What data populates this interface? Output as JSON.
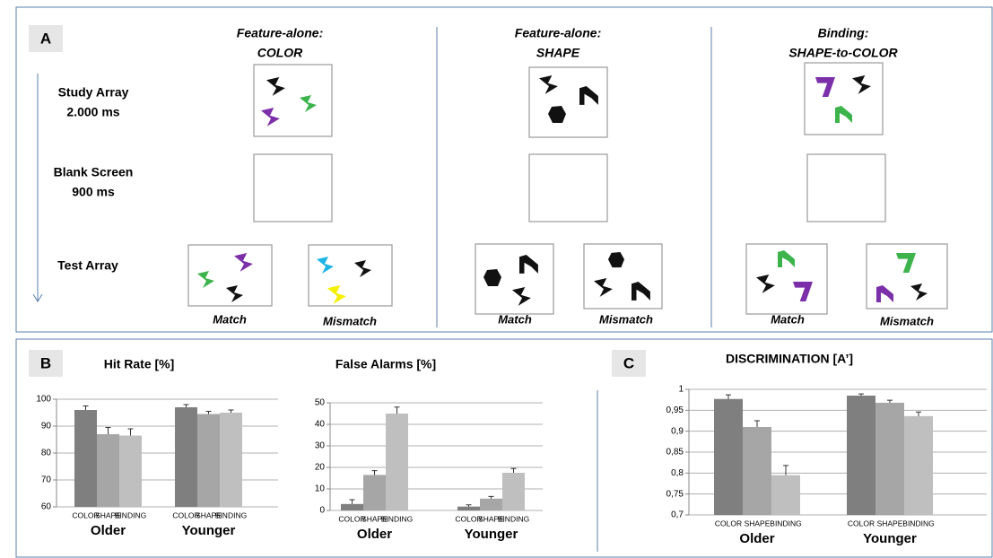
{
  "panel_a": {
    "label": "A",
    "columns": [
      {
        "line1": "Feature-alone:",
        "line2": "COLOR"
      },
      {
        "line1": "Feature-alone:",
        "line2": "SHAPE"
      },
      {
        "line1": "Binding:",
        "line2": "SHAPE-to-COLOR"
      }
    ],
    "rows": [
      {
        "line1": "Study Array",
        "line2": "2.000 ms"
      },
      {
        "line1": "Blank Screen",
        "line2": "900 ms"
      },
      {
        "line1": "Test Array"
      }
    ],
    "test_labels": [
      "Match",
      "Mismatch"
    ]
  },
  "panel_labels": [
    "B",
    "C"
  ],
  "chart_data": [
    {
      "type": "bar",
      "title": "Hit Rate [%]",
      "categories": [
        "Older",
        "Younger"
      ],
      "series": [
        {
          "name": "COLOR",
          "color": "#7f7f7f",
          "values": [
            96,
            97
          ],
          "errors": [
            1.5,
            1
          ]
        },
        {
          "name": "SHAPE",
          "color": "#a6a6a6",
          "values": [
            87,
            94.5
          ],
          "errors": [
            2.5,
            1
          ]
        },
        {
          "name": "BINDING",
          "color": "#bfbfbf",
          "values": [
            86.5,
            95
          ],
          "errors": [
            2.5,
            1
          ]
        }
      ],
      "ylim": [
        60,
        100
      ],
      "yticks": [
        60,
        70,
        80,
        90,
        100
      ],
      "grid": true
    },
    {
      "type": "bar",
      "title": "False Alarms [%]",
      "categories": [
        "Older",
        "Younger"
      ],
      "series": [
        {
          "name": "COLOR",
          "color": "#7f7f7f",
          "values": [
            3,
            1.8
          ],
          "errors": [
            2,
            0.8
          ]
        },
        {
          "name": "SHAPE",
          "color": "#a6a6a6",
          "values": [
            16.5,
            5.5
          ],
          "errors": [
            2,
            1
          ]
        },
        {
          "name": "BINDING",
          "color": "#bfbfbf",
          "values": [
            45,
            17.5
          ],
          "errors": [
            3,
            2
          ]
        }
      ],
      "ylim": [
        0,
        50
      ],
      "yticks": [
        0,
        10,
        20,
        30,
        40,
        50
      ],
      "grid": true
    },
    {
      "type": "bar",
      "title": "DISCRIMINATION [A’]",
      "categories": [
        "Older",
        "Younger"
      ],
      "series": [
        {
          "name": "COLOR",
          "color": "#7f7f7f",
          "values": [
            0.977,
            0.985
          ],
          "errors": [
            0.01,
            0.004
          ]
        },
        {
          "name": "SHAPE",
          "color": "#a6a6a6",
          "values": [
            0.91,
            0.968
          ],
          "errors": [
            0.015,
            0.006
          ]
        },
        {
          "name": "BINDING",
          "color": "#bfbfbf",
          "values": [
            0.795,
            0.936
          ],
          "errors": [
            0.023,
            0.01
          ]
        }
      ],
      "ylim": [
        0.7,
        1
      ],
      "yticks": [
        {
          "value": 0.7,
          "label": "0,7"
        },
        {
          "value": 0.75,
          "label": "0,75"
        },
        {
          "value": 0.8,
          "label": "0,8"
        },
        {
          "value": 0.85,
          "label": "0,85"
        },
        {
          "value": 0.9,
          "label": "0,9"
        },
        {
          "value": 0.95,
          "label": "0,95"
        },
        1
      ],
      "grid": true
    }
  ]
}
